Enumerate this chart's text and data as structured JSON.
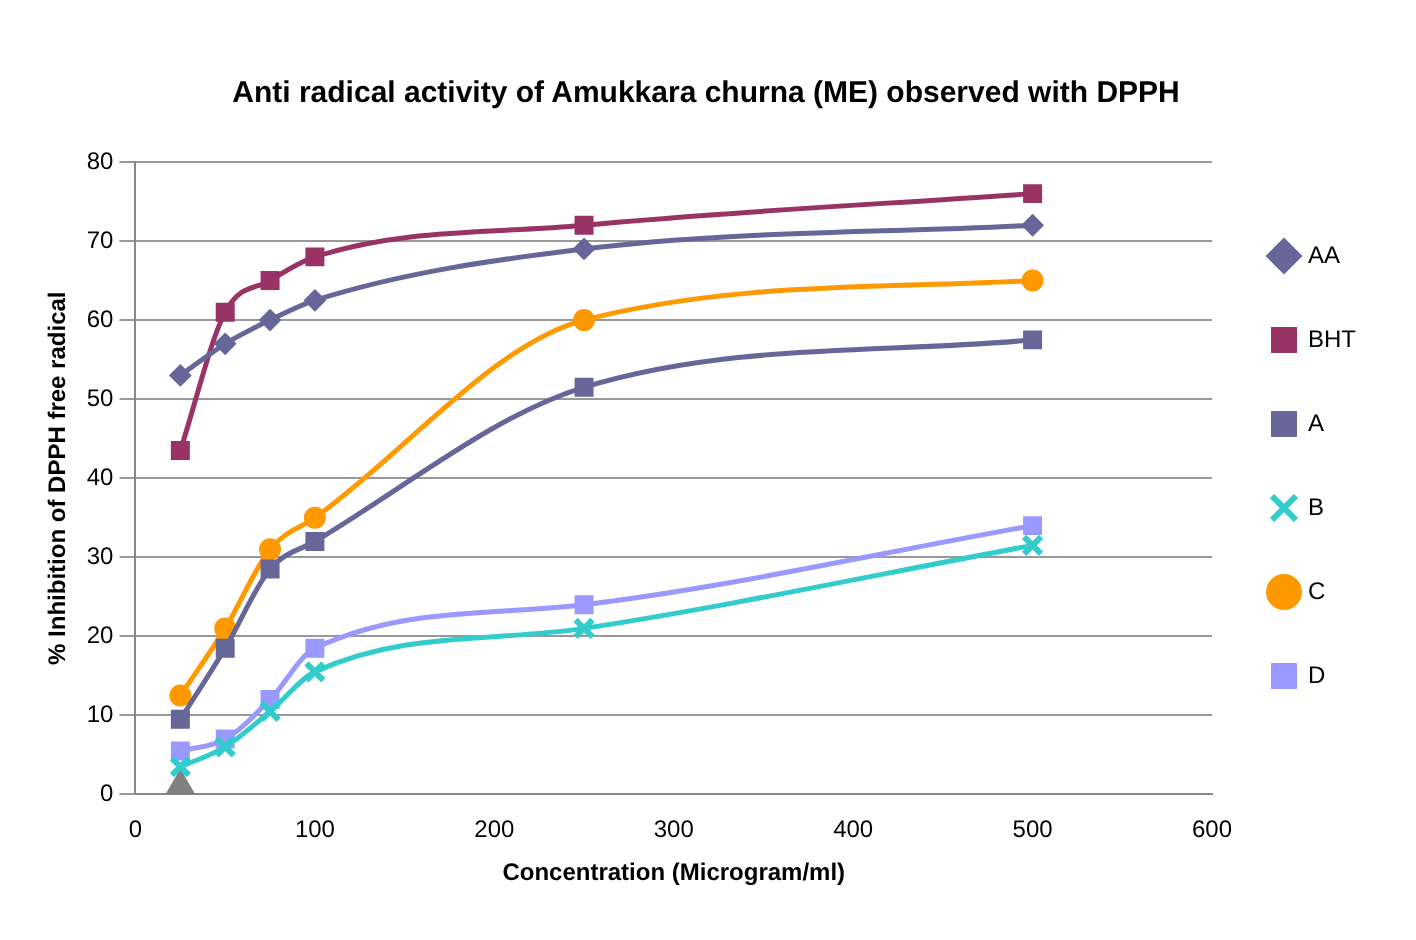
{
  "chart_data": {
    "type": "line",
    "title": "Anti radical activity of Amukkara churna (ME) observed with DPPH",
    "xlabel": "Concentration (Microgram/ml)",
    "ylabel": "% Inhibition of DPPH free radical",
    "x": [
      25,
      50,
      75,
      100,
      250,
      500
    ],
    "series": [
      {
        "name": "AA",
        "color": "#666699",
        "marker": "diamond",
        "values": [
          53,
          57,
          60,
          62.5,
          69,
          72
        ]
      },
      {
        "name": "BHT",
        "color": "#993366",
        "marker": "square",
        "values": [
          43.5,
          61,
          65,
          68,
          72,
          76
        ]
      },
      {
        "name": "A",
        "color": "#666699",
        "marker": "square",
        "values": [
          9.5,
          18.5,
          28.5,
          32,
          51.5,
          57.5
        ]
      },
      {
        "name": "B",
        "color": "#33cccc",
        "marker": "cross",
        "values": [
          3.5,
          6,
          10.5,
          15.5,
          21,
          31.5
        ]
      },
      {
        "name": "C",
        "color": "#ff9900",
        "marker": "circle",
        "values": [
          12.5,
          21,
          31,
          35,
          60,
          65
        ]
      },
      {
        "name": "D",
        "color": "#9999ff",
        "marker": "square",
        "values": [
          5.5,
          7,
          12,
          18.5,
          24,
          34
        ]
      },
      {
        "type": "scatter",
        "color": "#808080",
        "marker": "triangle",
        "values": [
          1,
          null,
          null,
          null,
          null,
          null
        ]
      }
    ],
    "xlim": [
      0,
      600
    ],
    "xticks": [
      0,
      100,
      200,
      300,
      400,
      500,
      600
    ],
    "ylim": [
      0,
      80
    ],
    "yticks": [
      0,
      10,
      20,
      30,
      40,
      50,
      60,
      70,
      80
    ],
    "grid": "y",
    "legend": "right"
  }
}
